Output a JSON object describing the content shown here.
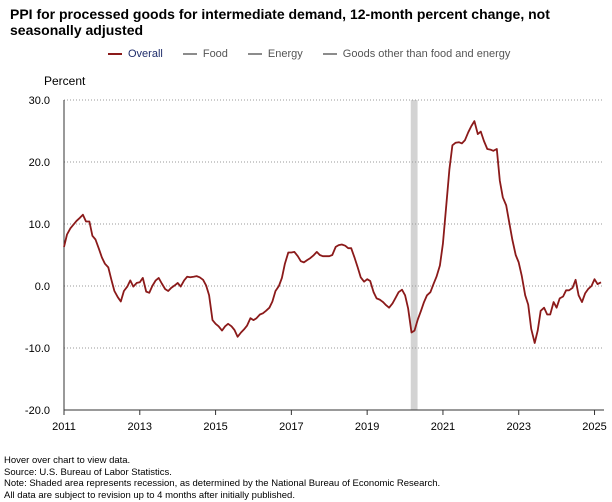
{
  "chart_data": {
    "type": "line",
    "title": "PPI for processed goods for intermediate demand, 12-month percent change, not seasonally adjusted",
    "ylabel": "Percent",
    "xlabel": "",
    "ylim": [
      -20,
      30
    ],
    "xlim": [
      2011.0,
      2025.25
    ],
    "yticks": [
      30,
      20,
      10,
      0,
      -10,
      -20
    ],
    "ytick_labels": [
      "30.0",
      "20.0",
      "10.0",
      "0.0",
      "-10.0",
      "-20.0"
    ],
    "xticks": [
      2011,
      2013,
      2015,
      2017,
      2019,
      2021,
      2023,
      2025
    ],
    "xtick_labels": [
      "2011",
      "2013",
      "2015",
      "2017",
      "2019",
      "2021",
      "2023",
      "2025"
    ],
    "grid": "horizontal-dotted",
    "legend_position": "top",
    "recession_shading": [
      [
        2020.15,
        2020.33
      ]
    ],
    "series": [
      {
        "name": "Overall",
        "color": "#8b1a1a",
        "x": [
          2011.0,
          2011.08,
          2011.17,
          2011.25,
          2011.33,
          2011.42,
          2011.5,
          2011.58,
          2011.67,
          2011.75,
          2011.83,
          2011.92,
          2012.0,
          2012.08,
          2012.17,
          2012.25,
          2012.33,
          2012.42,
          2012.5,
          2012.58,
          2012.67,
          2012.75,
          2012.83,
          2012.92,
          2013.0,
          2013.08,
          2013.17,
          2013.25,
          2013.33,
          2013.42,
          2013.5,
          2013.58,
          2013.67,
          2013.75,
          2013.83,
          2013.92,
          2014.0,
          2014.08,
          2014.17,
          2014.25,
          2014.33,
          2014.42,
          2014.5,
          2014.58,
          2014.67,
          2014.75,
          2014.83,
          2014.92,
          2015.0,
          2015.08,
          2015.17,
          2015.25,
          2015.33,
          2015.42,
          2015.5,
          2015.58,
          2015.67,
          2015.75,
          2015.83,
          2015.92,
          2016.0,
          2016.08,
          2016.17,
          2016.25,
          2016.33,
          2016.42,
          2016.5,
          2016.58,
          2016.67,
          2016.75,
          2016.83,
          2016.92,
          2017.0,
          2017.08,
          2017.17,
          2017.25,
          2017.33,
          2017.42,
          2017.5,
          2017.58,
          2017.67,
          2017.75,
          2017.83,
          2017.92,
          2018.0,
          2018.08,
          2018.17,
          2018.25,
          2018.33,
          2018.42,
          2018.5,
          2018.58,
          2018.67,
          2018.75,
          2018.83,
          2018.92,
          2019.0,
          2019.08,
          2019.17,
          2019.25,
          2019.33,
          2019.42,
          2019.5,
          2019.58,
          2019.67,
          2019.75,
          2019.83,
          2019.92,
          2020.0,
          2020.08,
          2020.17,
          2020.25,
          2020.33,
          2020.42,
          2020.5,
          2020.58,
          2020.67,
          2020.75,
          2020.83,
          2020.92,
          2021.0,
          2021.08,
          2021.17,
          2021.25,
          2021.33,
          2021.42,
          2021.5,
          2021.58,
          2021.67,
          2021.75,
          2021.83,
          2021.92,
          2022.0,
          2022.08,
          2022.17,
          2022.25,
          2022.33,
          2022.42,
          2022.5,
          2022.58,
          2022.67,
          2022.75,
          2022.83,
          2022.92,
          2023.0,
          2023.08,
          2023.17,
          2023.25,
          2023.33,
          2023.42,
          2023.5,
          2023.58,
          2023.67,
          2023.75,
          2023.83,
          2023.92,
          2024.0,
          2024.08,
          2024.17,
          2024.25,
          2024.33,
          2024.42,
          2024.5,
          2024.58,
          2024.67,
          2024.75,
          2024.83,
          2024.92,
          2025.0,
          2025.08,
          2025.17
        ],
        "values": [
          6.3,
          8.3,
          9.3,
          9.9,
          10.5,
          11.0,
          11.5,
          10.4,
          10.4,
          8.1,
          7.5,
          6.0,
          4.6,
          3.6,
          3.0,
          1.0,
          -0.8,
          -1.8,
          -2.5,
          -0.8,
          -0.1,
          0.9,
          -0.1,
          0.5,
          0.6,
          1.3,
          -0.9,
          -1.1,
          0.0,
          0.9,
          1.3,
          0.4,
          -0.5,
          -0.8,
          -0.3,
          0.1,
          0.5,
          -0.1,
          0.9,
          1.5,
          1.4,
          1.5,
          1.6,
          1.4,
          1.0,
          0.1,
          -1.5,
          -5.5,
          -6.1,
          -6.5,
          -7.2,
          -6.5,
          -6.1,
          -6.5,
          -7.1,
          -8.2,
          -7.5,
          -7.0,
          -6.4,
          -5.2,
          -5.5,
          -5.2,
          -4.6,
          -4.4,
          -4.0,
          -3.5,
          -2.5,
          -0.8,
          0.0,
          1.3,
          3.6,
          5.4,
          5.4,
          5.5,
          4.8,
          4.0,
          3.8,
          4.2,
          4.5,
          4.9,
          5.5,
          5.0,
          4.8,
          4.8,
          4.8,
          5.0,
          6.3,
          6.6,
          6.7,
          6.5,
          6.1,
          6.1,
          4.5,
          3.0,
          1.4,
          0.7,
          1.1,
          0.8,
          -1.0,
          -2.0,
          -2.2,
          -2.6,
          -3.1,
          -3.5,
          -2.8,
          -1.9,
          -1.0,
          -0.6,
          -1.5,
          -3.6,
          -7.5,
          -7.2,
          -5.5,
          -4.0,
          -2.6,
          -1.5,
          -1.0,
          0.3,
          1.5,
          3.3,
          6.8,
          12.5,
          18.8,
          22.7,
          23.1,
          23.2,
          23.0,
          23.5,
          24.8,
          25.8,
          26.6,
          24.5,
          24.9,
          23.4,
          22.1,
          22.0,
          21.8,
          22.1,
          17.0,
          14.3,
          13.0,
          10.2,
          7.5,
          5.0,
          3.8,
          1.6,
          -1.5,
          -3.0,
          -6.9,
          -9.2,
          -7.2,
          -4.0,
          -3.5,
          -4.6,
          -4.6,
          -2.6,
          -3.5,
          -2.0,
          -1.7,
          -0.7,
          -0.7,
          -0.3,
          1.0,
          -1.5,
          -2.6,
          -1.2,
          -0.5,
          0.0,
          1.1,
          0.3,
          0.6
        ]
      },
      {
        "name": "Food",
        "color": "#8c8c8c",
        "visible": false,
        "values": []
      },
      {
        "name": "Energy",
        "color": "#8c8c8c",
        "visible": false,
        "values": []
      },
      {
        "name": "Goods other than food and energy",
        "color": "#8c8c8c",
        "visible": false,
        "values": []
      }
    ]
  },
  "legend": {
    "items": [
      {
        "label": "Overall",
        "color": "#8b1a1a"
      },
      {
        "label": "Food",
        "color": "#8c8c8c"
      },
      {
        "label": "Energy",
        "color": "#8c8c8c"
      },
      {
        "label": "Goods other than food and energy",
        "color": "#8c8c8c"
      }
    ]
  },
  "notes": {
    "hover": "Hover over chart to view data.",
    "source": "Source: U.S. Bureau of Labor Statistics.",
    "recession": "Note: Shaded area represents recession, as determined by the National Bureau of Economic Research.",
    "revision": "All data are subject to revision up to 4 months after initially published."
  }
}
